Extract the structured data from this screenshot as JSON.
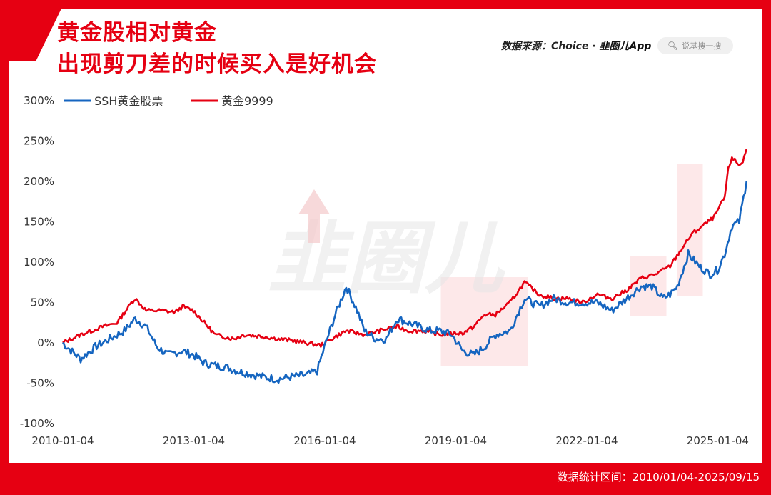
{
  "title_line1": "黄金股相对黄金",
  "title_line2": "出现剪刀差的时候买入是好机会",
  "source_label": "数据来源：Choice ·",
  "source_app": "韭圈儿App",
  "search_placeholder": "说基搜一搜",
  "footer": "数据统计区间：2010/01/04-2025/09/15",
  "watermark": "韭圈儿",
  "colors": {
    "brand_red": "#e60012",
    "gold_stock": "#1565c0",
    "gold_9999": "#e60012",
    "highlight": "#fbd5d7"
  },
  "icons": {
    "search": "search-icon"
  },
  "chart_data": {
    "type": "line",
    "y_ticks": [
      "300%",
      "250%",
      "200%",
      "150%",
      "100%",
      "50%",
      "0%",
      "-50%",
      "-100%"
    ],
    "ylim": [
      -100,
      300
    ],
    "x_ticks": [
      "2010-01-04",
      "2013-01-04",
      "2016-01-04",
      "2019-01-04",
      "2022-01-04",
      "2025-01-04"
    ],
    "x_range": [
      "2010-01-04",
      "2025-09-15"
    ],
    "grid": false,
    "legend_position": "top-left",
    "highlight_periods": [
      {
        "from": "2018-09",
        "to": "2020-09"
      },
      {
        "from": "2023-01",
        "to": "2023-11"
      },
      {
        "from": "2024-02",
        "to": "2024-09"
      }
    ],
    "series": [
      {
        "name": "SSH黄金股票",
        "color": "#1565c0",
        "points": [
          [
            "2010-01",
            0
          ],
          [
            "2010-06",
            -20
          ],
          [
            "2010-10",
            -5
          ],
          [
            "2011-02",
            5
          ],
          [
            "2011-06",
            15
          ],
          [
            "2011-09",
            30
          ],
          [
            "2011-12",
            20
          ],
          [
            "2012-03",
            -5
          ],
          [
            "2012-06",
            -15
          ],
          [
            "2012-10",
            -10
          ],
          [
            "2013-01",
            -15
          ],
          [
            "2013-04",
            -25
          ],
          [
            "2013-07",
            -28
          ],
          [
            "2013-10",
            -30
          ],
          [
            "2014-01",
            -35
          ],
          [
            "2014-04",
            -38
          ],
          [
            "2014-08",
            -42
          ],
          [
            "2014-12",
            -45
          ],
          [
            "2015-04",
            -42
          ],
          [
            "2015-08",
            -40
          ],
          [
            "2015-11",
            -35
          ],
          [
            "2016-01",
            -5
          ],
          [
            "2016-04",
            35
          ],
          [
            "2016-07",
            70
          ],
          [
            "2016-10",
            40
          ],
          [
            "2016-12",
            15
          ],
          [
            "2017-03",
            5
          ],
          [
            "2017-06",
            5
          ],
          [
            "2017-09",
            30
          ],
          [
            "2017-12",
            25
          ],
          [
            "2018-03",
            20
          ],
          [
            "2018-06",
            15
          ],
          [
            "2018-09",
            15
          ],
          [
            "2018-12",
            10
          ],
          [
            "2019-03",
            -10
          ],
          [
            "2019-06",
            -15
          ],
          [
            "2019-09",
            -5
          ],
          [
            "2019-12",
            10
          ],
          [
            "2020-04",
            15
          ],
          [
            "2020-08",
            55
          ],
          [
            "2020-12",
            45
          ],
          [
            "2021-04",
            55
          ],
          [
            "2021-08",
            50
          ],
          [
            "2021-12",
            50
          ],
          [
            "2022-04",
            50
          ],
          [
            "2022-08",
            40
          ],
          [
            "2022-12",
            55
          ],
          [
            "2023-04",
            70
          ],
          [
            "2023-07",
            70
          ],
          [
            "2023-10",
            55
          ],
          [
            "2023-12",
            60
          ],
          [
            "2024-02",
            70
          ],
          [
            "2024-05",
            110
          ],
          [
            "2024-08",
            95
          ],
          [
            "2024-11",
            85
          ],
          [
            "2025-01",
            90
          ],
          [
            "2025-03",
            110
          ],
          [
            "2025-05",
            145
          ],
          [
            "2025-07",
            150
          ],
          [
            "2025-09",
            200
          ]
        ]
      },
      {
        "name": "黄金9999",
        "color": "#e60012",
        "points": [
          [
            "2010-01",
            0
          ],
          [
            "2010-06",
            10
          ],
          [
            "2010-12",
            20
          ],
          [
            "2011-04",
            25
          ],
          [
            "2011-08",
            50
          ],
          [
            "2011-09",
            55
          ],
          [
            "2011-12",
            40
          ],
          [
            "2012-04",
            40
          ],
          [
            "2012-08",
            38
          ],
          [
            "2012-10",
            45
          ],
          [
            "2013-01",
            40
          ],
          [
            "2013-04",
            25
          ],
          [
            "2013-07",
            10
          ],
          [
            "2013-12",
            5
          ],
          [
            "2014-03",
            10
          ],
          [
            "2014-08",
            8
          ],
          [
            "2014-12",
            5
          ],
          [
            "2015-04",
            3
          ],
          [
            "2015-08",
            0
          ],
          [
            "2015-12",
            -3
          ],
          [
            "2016-03",
            5
          ],
          [
            "2016-07",
            15
          ],
          [
            "2016-12",
            10
          ],
          [
            "2017-04",
            15
          ],
          [
            "2017-09",
            20
          ],
          [
            "2017-12",
            15
          ],
          [
            "2018-04",
            15
          ],
          [
            "2018-09",
            10
          ],
          [
            "2018-12",
            12
          ],
          [
            "2019-03",
            12
          ],
          [
            "2019-06",
            20
          ],
          [
            "2019-09",
            35
          ],
          [
            "2019-12",
            35
          ],
          [
            "2020-04",
            50
          ],
          [
            "2020-08",
            75
          ],
          [
            "2020-12",
            60
          ],
          [
            "2021-04",
            55
          ],
          [
            "2021-08",
            55
          ],
          [
            "2021-12",
            50
          ],
          [
            "2022-04",
            60
          ],
          [
            "2022-08",
            55
          ],
          [
            "2022-12",
            65
          ],
          [
            "2023-04",
            80
          ],
          [
            "2023-08",
            85
          ],
          [
            "2023-12",
            95
          ],
          [
            "2024-03",
            115
          ],
          [
            "2024-06",
            135
          ],
          [
            "2024-09",
            145
          ],
          [
            "2024-12",
            155
          ],
          [
            "2025-03",
            180
          ],
          [
            "2025-04",
            215
          ],
          [
            "2025-05",
            230
          ],
          [
            "2025-07",
            220
          ],
          [
            "2025-08",
            225
          ],
          [
            "2025-09",
            240
          ]
        ]
      }
    ]
  }
}
